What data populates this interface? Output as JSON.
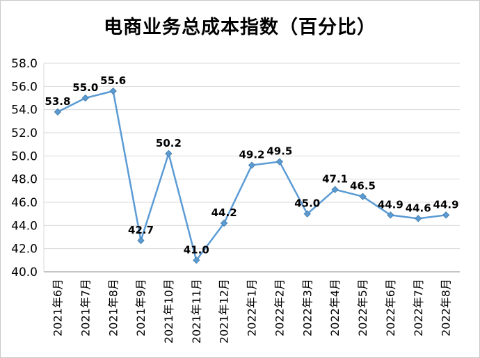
{
  "title": "电商业务总成本指数（百分比）",
  "chart_data": {
    "type": "line",
    "title": "电商业务总成本指数（百分比）",
    "categories": [
      "2021年6月",
      "2021年7月",
      "2021年8月",
      "2021年9月",
      "2021年10月",
      "2021年11月",
      "2021年12月",
      "2022年1月",
      "2022年2月",
      "2022年3月",
      "2022年4月",
      "2022年5月",
      "2022年6月",
      "2022年7月",
      "2022年8月"
    ],
    "values": [
      53.8,
      55.0,
      55.6,
      42.7,
      50.2,
      41.0,
      44.2,
      49.2,
      49.5,
      45.0,
      47.1,
      46.5,
      44.9,
      44.6,
      44.9
    ],
    "xlabel": "",
    "ylabel": "",
    "ylim": [
      40.0,
      58.0
    ],
    "ytick_step": 2.0,
    "grid": true,
    "legend_position": "none",
    "line_color": "#5B9BD5",
    "marker_stroke": "#4a82ad",
    "gridline_color": "#d9d9d9",
    "axis_line_color": "#898989",
    "marker": "diamond",
    "label_decimals": 1
  }
}
